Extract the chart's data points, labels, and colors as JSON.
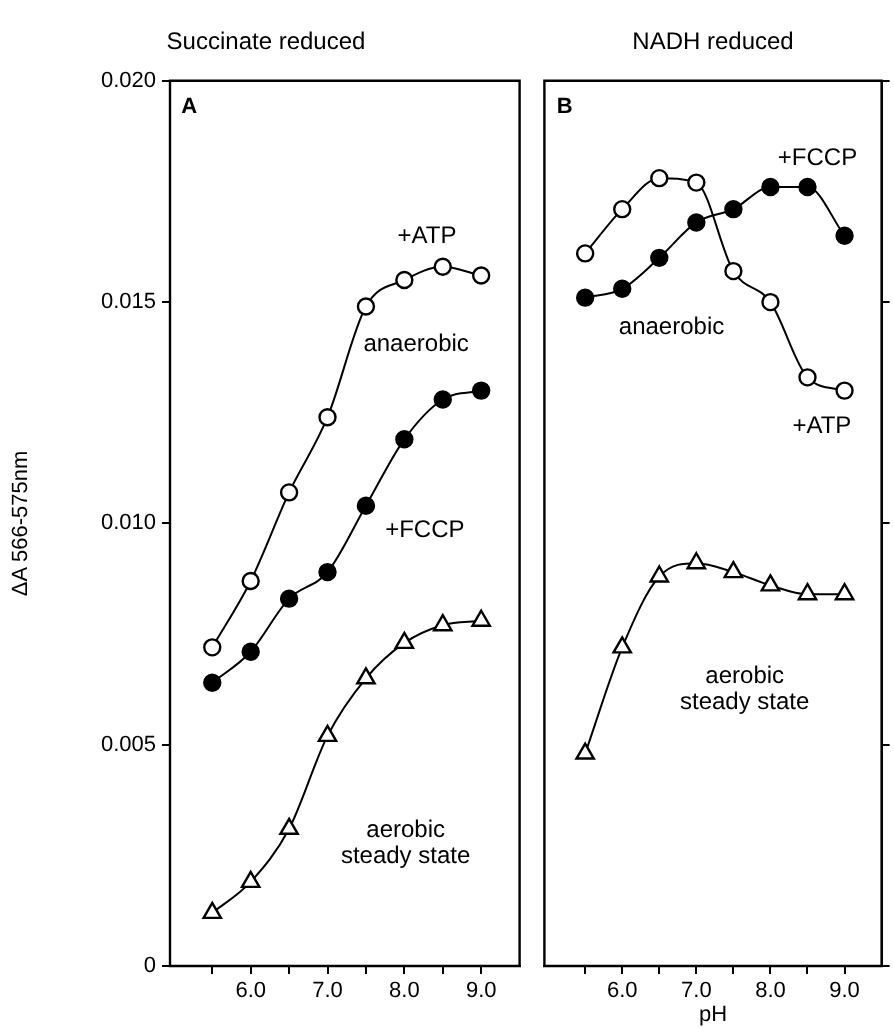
{
  "chart_data": [
    {
      "type": "line",
      "title": "Succinate reduced",
      "ylabel": "ΔA 566-575nm",
      "marker": "circle",
      "x": [
        5.5,
        6.0,
        6.5,
        7.0,
        7.5,
        8.0,
        8.5,
        9.0
      ],
      "xlim": [
        4.95,
        9.5
      ],
      "xticks": [
        {
          "value": 5.5,
          "label": null
        },
        {
          "value": 6,
          "label": "6.0"
        },
        {
          "value": 6.5,
          "label": null
        },
        {
          "value": 7,
          "label": "7.0"
        },
        {
          "value": 7.5,
          "label": null
        },
        {
          "value": 8,
          "label": "8.0"
        },
        {
          "value": 8.5,
          "label": null
        },
        {
          "value": 9,
          "label": "9.0"
        }
      ],
      "ylim": [
        0,
        0.02
      ],
      "yticks": [
        0,
        {
          "value": 0.005,
          "label": "0.005"
        },
        {
          "value": 0.01,
          "label": "0.010"
        },
        {
          "value": 0.015,
          "label": "0.015"
        },
        {
          "value": 0.02,
          "label": "0.020"
        }
      ],
      "series": [
        {
          "color": "#ffffff",
          "values": [
            0.0072,
            0.0087,
            0.0107,
            0.0124,
            0.0149,
            0.0155,
            0.0158,
            0.0156
          ]
        },
        {
          "color": "#000000",
          "values": [
            0.0064,
            0.0071,
            0.0083,
            0.0089,
            0.0104,
            0.0119,
            0.0128,
            0.013
          ]
        },
        {
          "color": "#ffffff",
          "marker": "triangle",
          "values": [
            0.0012,
            0.0019,
            0.0031,
            0.0052,
            0.0065,
            0.0073,
            0.0077,
            0.0078
          ]
        }
      ],
      "annotations": [
        "A",
        "+ATP",
        "anaerobic",
        "+FCCP",
        "aerobic\nsteady state"
      ]
    },
    {
      "type": "line",
      "title": "NADH reduced",
      "xlabel": "pH",
      "marker": "circle",
      "tick_labels": "x",
      "x": [
        5.5,
        6.0,
        6.5,
        7.0,
        7.5,
        8.0,
        8.5,
        9.0
      ],
      "xlim": [
        4.95,
        9.5
      ],
      "xticks": [
        {
          "value": 5.5,
          "label": null
        },
        {
          "value": 6,
          "label": "6.0"
        },
        {
          "value": 6.5,
          "label": null
        },
        {
          "value": 7,
          "label": "7.0"
        },
        {
          "value": 7.5,
          "label": null
        },
        {
          "value": 8,
          "label": "8.0"
        },
        {
          "value": 8.5,
          "label": null
        },
        {
          "value": 9,
          "label": "9.0"
        }
      ],
      "ylim": [
        0,
        0.02
      ],
      "yticks": [
        {
          "value": 0,
          "label": null
        },
        {
          "value": 0.005,
          "label": null
        },
        {
          "value": 0.01,
          "label": null
        },
        {
          "value": 0.015,
          "label": null
        },
        {
          "value": 0.02,
          "label": null
        }
      ],
      "series": [
        {
          "color": "#ffffff",
          "values": [
            0.0161,
            0.0171,
            0.0178,
            0.0177,
            0.0157,
            0.015,
            0.0133,
            0.013
          ]
        },
        {
          "color": "#000000",
          "values": [
            0.0151,
            0.0153,
            0.016,
            0.0168,
            0.0171,
            0.0176,
            0.0176,
            0.0165
          ]
        },
        {
          "color": "#ffffff",
          "marker": "triangle",
          "values": [
            0.0048,
            0.0072,
            0.0088,
            0.0091,
            0.0089,
            0.0086,
            0.0084,
            0.0084
          ]
        }
      ],
      "annotations": [
        "B",
        "+FCCP",
        "anaerobic",
        "+ATP",
        "aerobic\nsteady state"
      ]
    }
  ]
}
